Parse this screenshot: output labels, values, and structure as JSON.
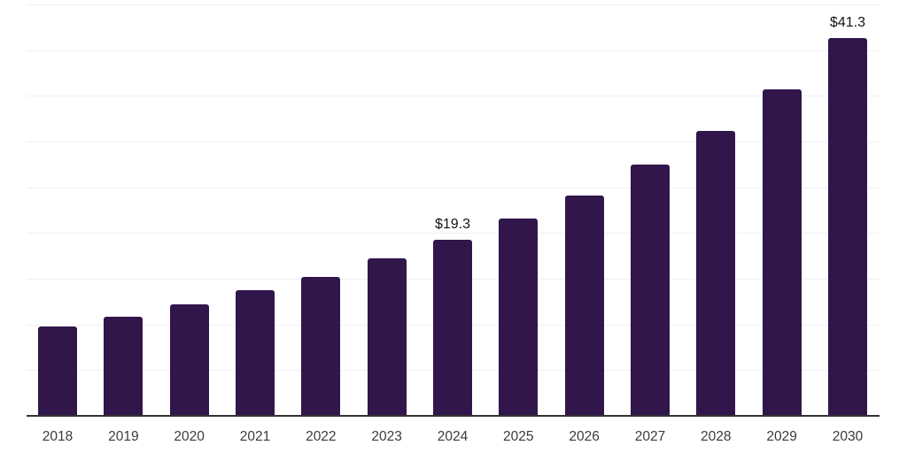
{
  "chart_data": {
    "type": "bar",
    "categories": [
      "2018",
      "2019",
      "2020",
      "2021",
      "2022",
      "2023",
      "2024",
      "2025",
      "2026",
      "2027",
      "2028",
      "2029",
      "2030"
    ],
    "values": [
      9.8,
      10.8,
      12.2,
      13.7,
      15.2,
      17.2,
      19.3,
      21.6,
      24.1,
      27.5,
      31.2,
      35.7,
      41.3
    ],
    "data_labels": [
      {
        "category": "2024",
        "text": "$19.3"
      },
      {
        "category": "2030",
        "text": "$41.3"
      }
    ],
    "xlabel": "",
    "ylabel": "",
    "ylim": [
      0,
      45
    ],
    "gridline_step": 5,
    "grid": "horizontal-only",
    "legend": "none",
    "y_axis_tick_labels": "hidden",
    "colors": {
      "bar": "#31164b",
      "gridline": "#f0eff3",
      "axis_line": "#333333",
      "tick_label": "#3b3b3b",
      "data_label": "#141414",
      "background": "#ffffff"
    }
  }
}
